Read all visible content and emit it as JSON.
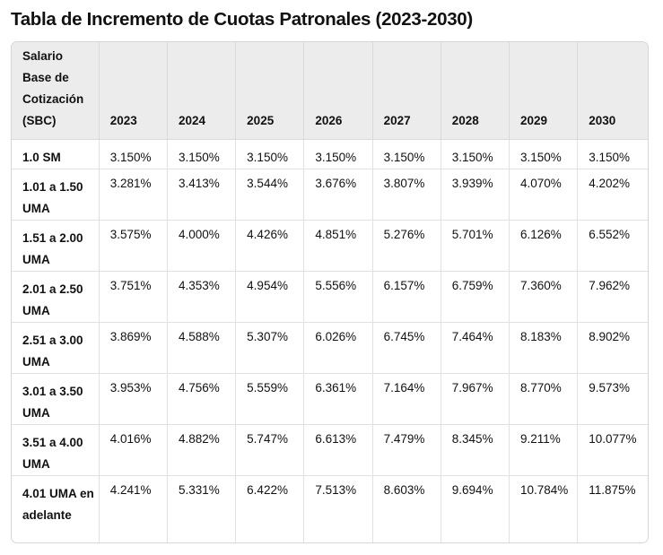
{
  "title": "Tabla de Incremento de Cuotas Patronales (2023-2030)",
  "table": {
    "headers": [
      "Salario Base de Cotización (SBC)",
      "2023",
      "2024",
      "2025",
      "2026",
      "2027",
      "2028",
      "2029",
      "2030"
    ],
    "rows": [
      {
        "label": "1.0 SM",
        "values": [
          "3.150%",
          "3.150%",
          "3.150%",
          "3.150%",
          "3.150%",
          "3.150%",
          "3.150%",
          "3.150%"
        ]
      },
      {
        "label": "1.01 a 1.50 UMA",
        "values": [
          "3.281%",
          "3.413%",
          "3.544%",
          "3.676%",
          "3.807%",
          "3.939%",
          "4.070%",
          "4.202%"
        ]
      },
      {
        "label": "1.51 a 2.00 UMA",
        "values": [
          "3.575%",
          "4.000%",
          "4.426%",
          "4.851%",
          "5.276%",
          "5.701%",
          "6.126%",
          "6.552%"
        ]
      },
      {
        "label": "2.01 a 2.50 UMA",
        "values": [
          "3.751%",
          "4.353%",
          "4.954%",
          "5.556%",
          "6.157%",
          "6.759%",
          "7.360%",
          "7.962%"
        ]
      },
      {
        "label": "2.51 a 3.00 UMA",
        "values": [
          "3.869%",
          "4.588%",
          "5.307%",
          "6.026%",
          "6.745%",
          "7.464%",
          "8.183%",
          "8.902%"
        ]
      },
      {
        "label": "3.01 a 3.50 UMA",
        "values": [
          "3.953%",
          "4.756%",
          "5.559%",
          "6.361%",
          "7.164%",
          "7.967%",
          "8.770%",
          "9.573%"
        ]
      },
      {
        "label": "3.51 a 4.00 UMA",
        "values": [
          "4.016%",
          "4.882%",
          "5.747%",
          "6.613%",
          "7.479%",
          "8.345%",
          "9.211%",
          "10.077%"
        ]
      },
      {
        "label": "4.01 UMA en adelante",
        "values": [
          "4.241%",
          "5.331%",
          "6.422%",
          "7.513%",
          "8.603%",
          "9.694%",
          "10.784%",
          "11.875%"
        ]
      }
    ]
  }
}
